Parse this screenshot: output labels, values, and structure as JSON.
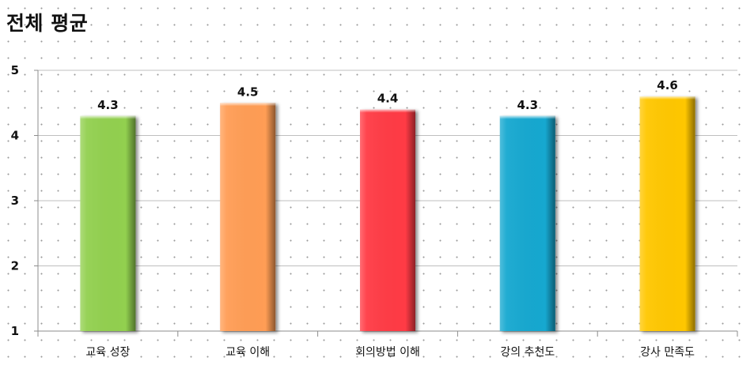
{
  "chart_data": {
    "type": "bar",
    "title": "전체 평균",
    "categories": [
      "교육 성장",
      "교육 이해",
      "회의방법 이해",
      "강의 추천도",
      "강사 만족도"
    ],
    "values": [
      4.3,
      4.5,
      4.4,
      4.3,
      4.6
    ],
    "data_labels": [
      "4.3",
      "4.5",
      "4.4",
      "4.3",
      "4.6"
    ],
    "colors": [
      "#92d050",
      "#ff9d55",
      "#ff3b44",
      "#17a8d0",
      "#ffc700"
    ],
    "ylim": [
      1,
      5
    ],
    "yticks": [
      1,
      2,
      3,
      4,
      5
    ],
    "xlabel": "",
    "ylabel": "",
    "grid": true,
    "legend": "none"
  }
}
